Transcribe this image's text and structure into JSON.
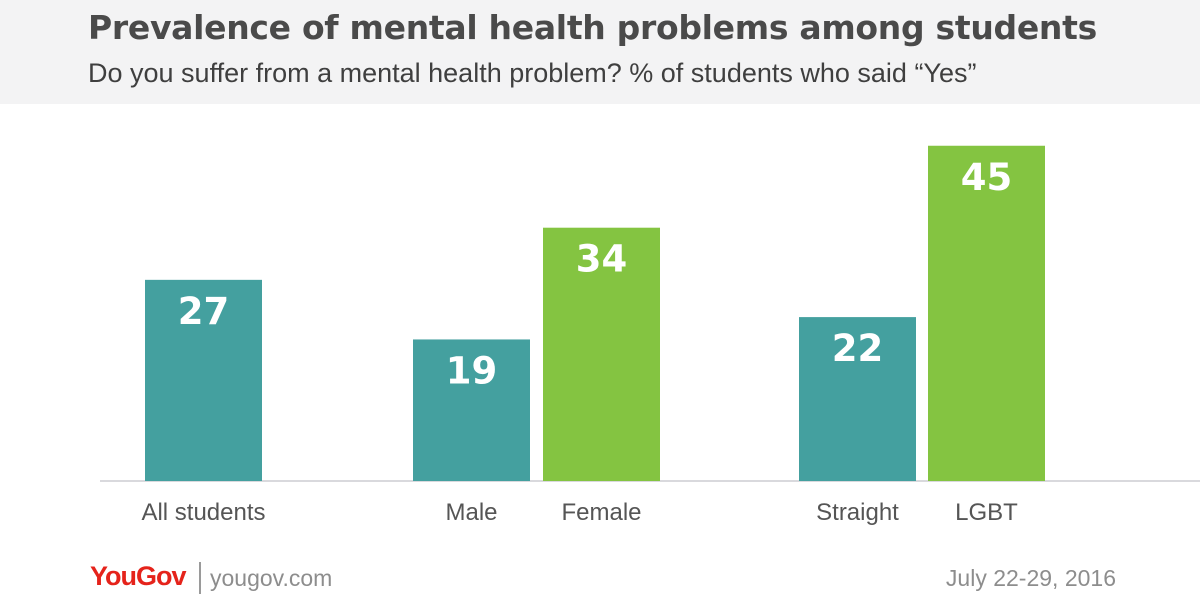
{
  "header": {
    "title": "Prevalence of mental health problems among students",
    "subtitle": "Do you suffer from a mental health problem? % of students who said “Yes”"
  },
  "footer": {
    "logo": "YouGov",
    "site": "yougov.com",
    "date": "July 22-29, 2016"
  },
  "colors": {
    "teal": "#44a09f",
    "green": "#84c441",
    "axis": "#d9d9dd",
    "label_text": "#555555",
    "value_text": "#ffffff"
  },
  "chart_data": {
    "type": "bar",
    "title": "Prevalence of mental health problems among students",
    "subtitle": "Do you suffer from a mental health problem? % of students who said “Yes”",
    "xlabel": "",
    "ylabel": "",
    "ylim": [
      0,
      50
    ],
    "grid": false,
    "groups": [
      "All students",
      "Male / Female",
      "Straight / LGBT"
    ],
    "categories": [
      "All students",
      "Male",
      "Female",
      "Straight",
      "LGBT"
    ],
    "values": [
      27,
      19,
      34,
      22,
      45
    ],
    "bar_colors": [
      "teal",
      "teal",
      "green",
      "teal",
      "green"
    ]
  }
}
